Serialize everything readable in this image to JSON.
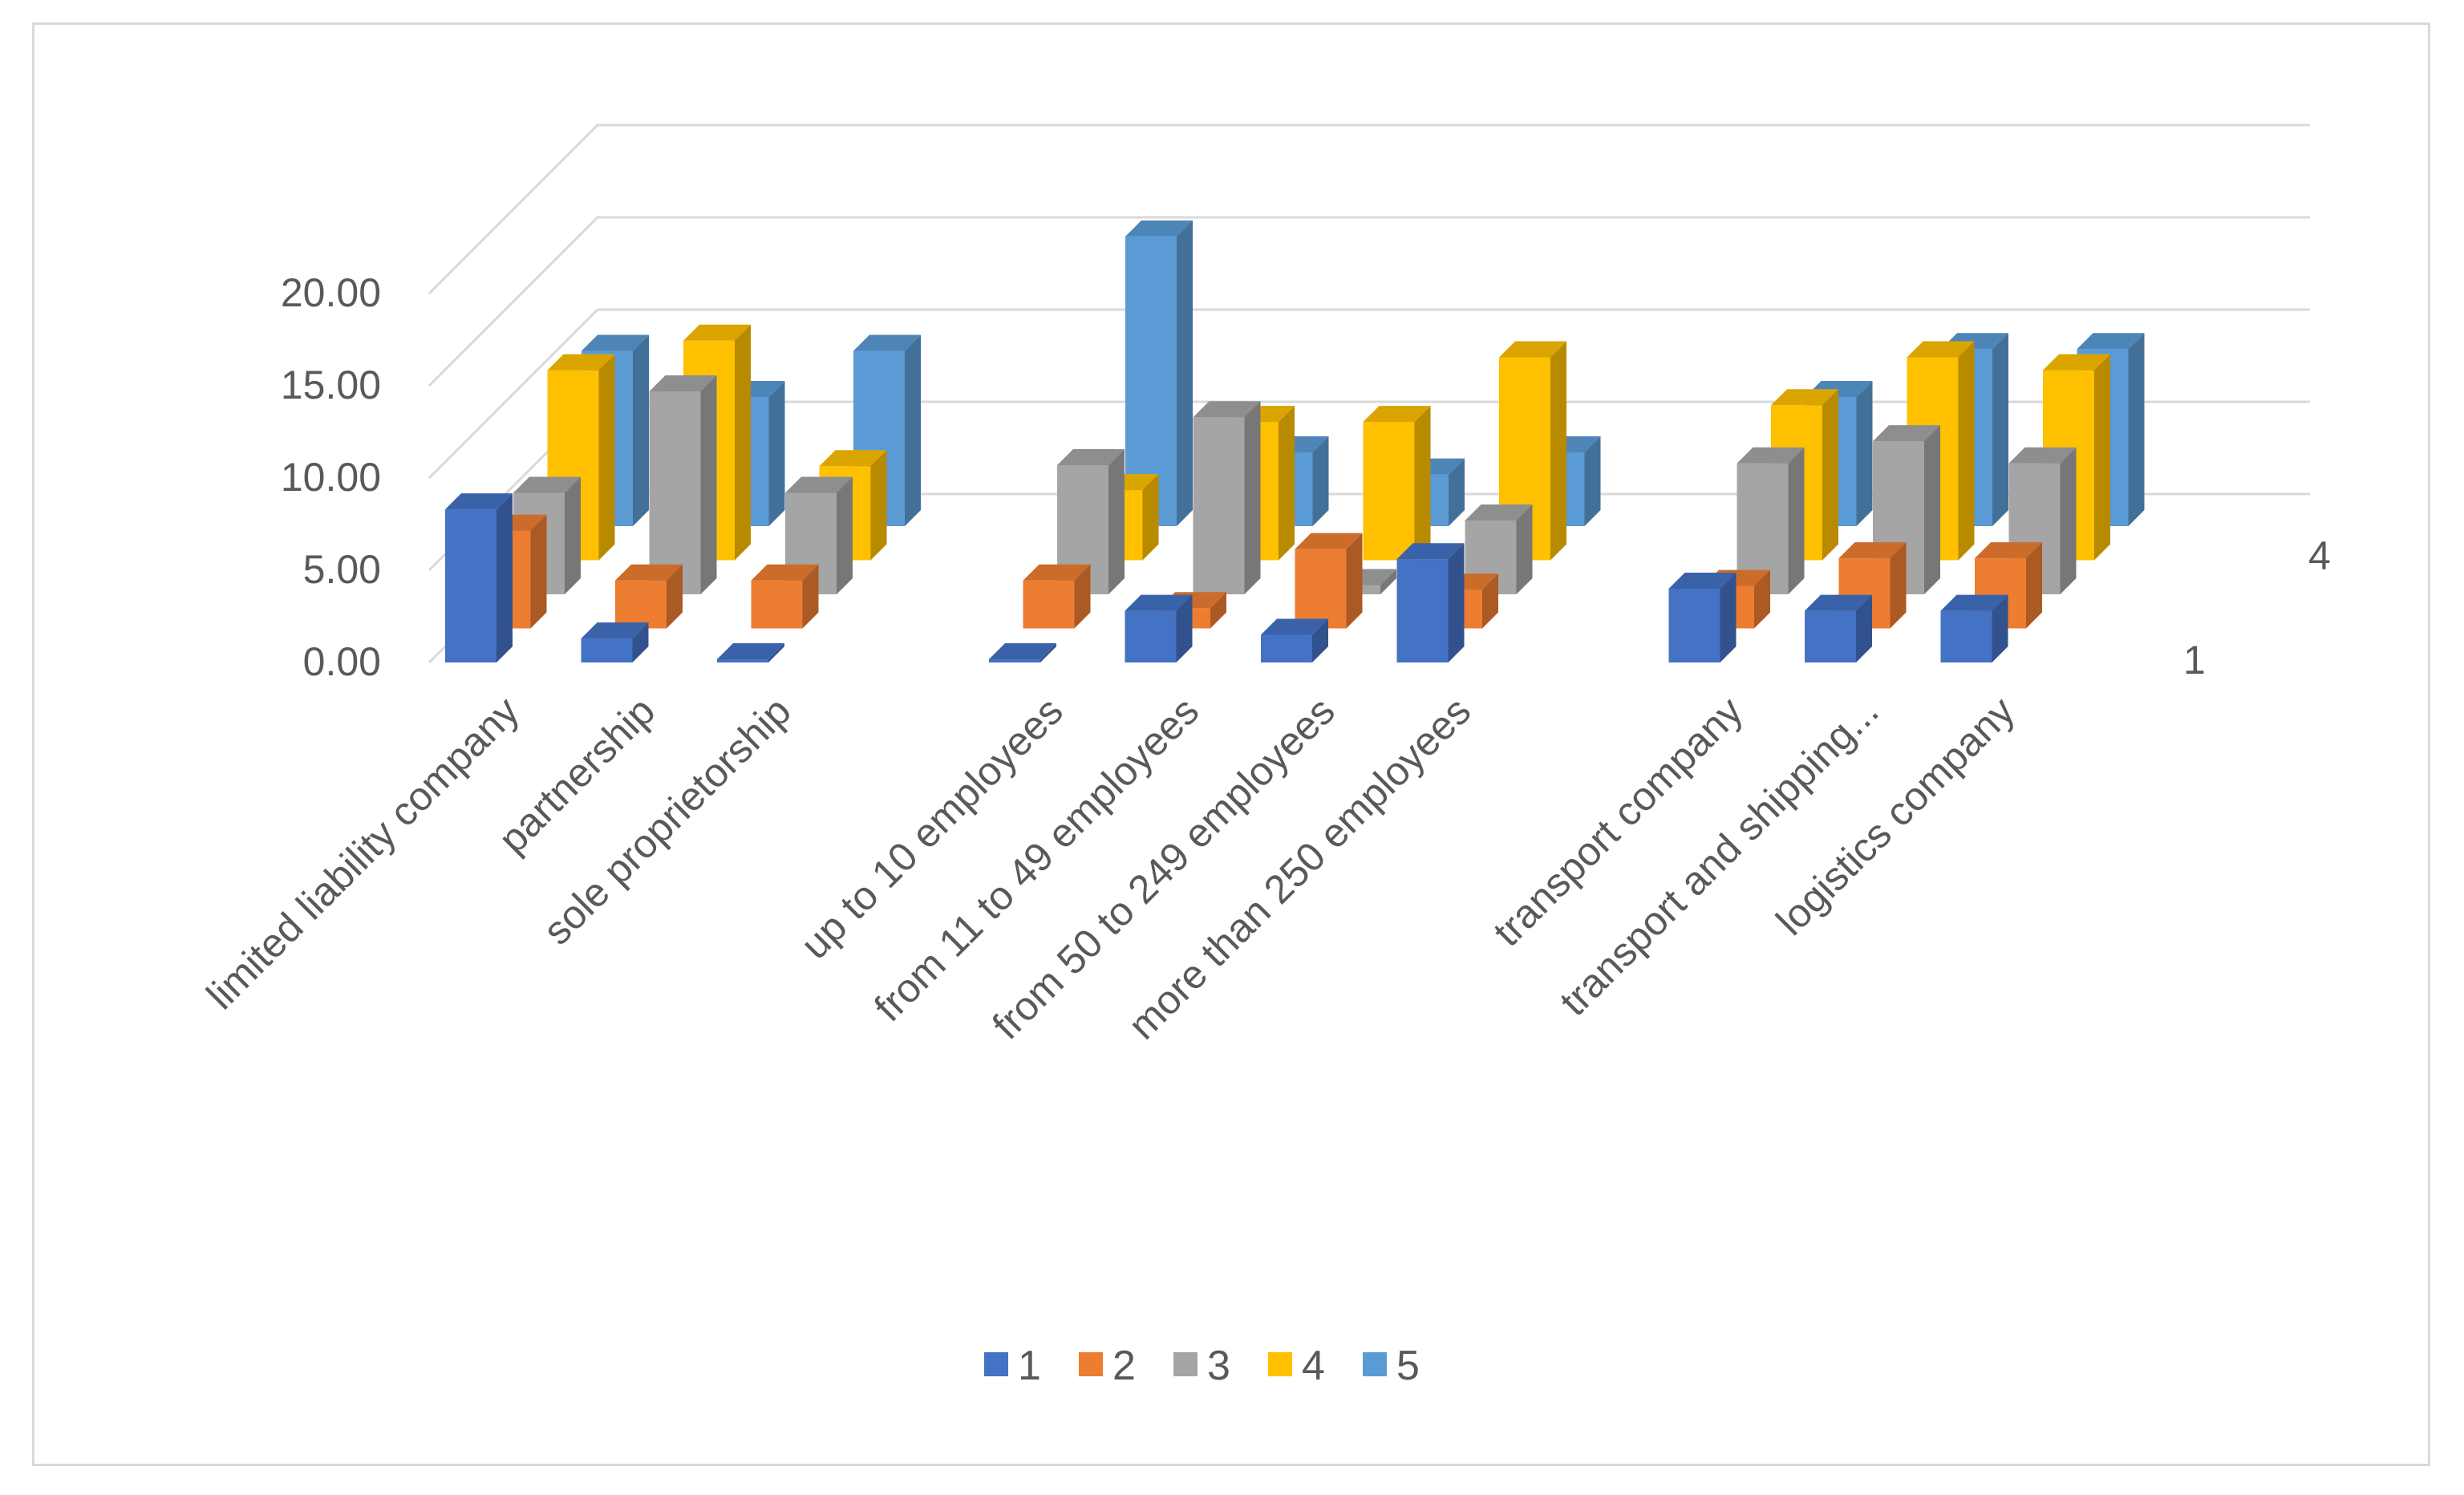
{
  "chart_data": {
    "type": "bar",
    "subtype": "3d-clustered-column",
    "title": "",
    "xlabel": "",
    "ylabel": "",
    "ylim": [
      0,
      20
    ],
    "yticks": [
      "0.00",
      "5.00",
      "10.00",
      "15.00",
      "20.00"
    ],
    "depth_labels": [
      "1",
      "4"
    ],
    "grid": true,
    "legend_position": "bottom",
    "categories": [
      "limited liability company",
      "partnership",
      "sole proprietorship",
      "",
      "up to 10 employees",
      "from 11 to 49 employees",
      "from 50 to 249 employees",
      "more than 250 employees",
      "",
      "transport company",
      "transport and shipping...",
      "logistics company"
    ],
    "series": [
      {
        "name": "1",
        "color": "#4472c4",
        "values": [
          8.3,
          1.3,
          0.0,
          null,
          0.0,
          2.8,
          1.5,
          5.6,
          null,
          4.0,
          2.8,
          2.8
        ]
      },
      {
        "name": "2",
        "color": "#ed7d31",
        "values": [
          5.3,
          2.6,
          2.6,
          null,
          2.6,
          1.1,
          4.3,
          2.1,
          null,
          2.3,
          3.8,
          3.8
        ]
      },
      {
        "name": "3",
        "color": "#a5a5a5",
        "values": [
          5.5,
          11.0,
          5.5,
          null,
          7.0,
          9.6,
          0.5,
          4.0,
          null,
          7.1,
          8.3,
          7.1
        ]
      },
      {
        "name": "4",
        "color": "#ffc000",
        "values": [
          10.3,
          11.9,
          5.1,
          null,
          3.8,
          7.5,
          7.5,
          11.0,
          null,
          8.4,
          11.0,
          10.3
        ]
      },
      {
        "name": "5",
        "color": "#5b9bd5",
        "values": [
          9.5,
          7.0,
          9.5,
          null,
          15.7,
          4.0,
          2.8,
          4.0,
          null,
          7.0,
          9.6,
          9.6
        ]
      }
    ]
  }
}
